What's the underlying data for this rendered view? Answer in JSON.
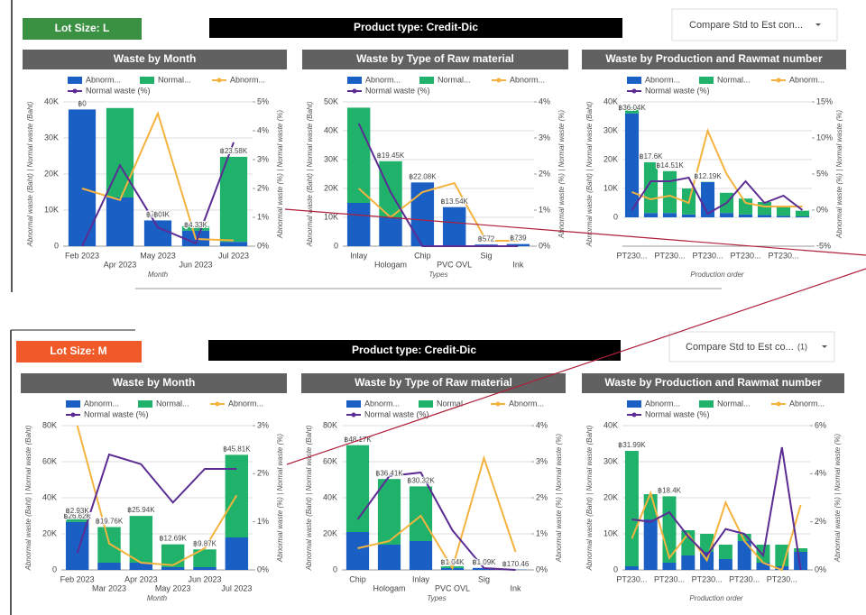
{
  "dashboards": [
    {
      "lot_size": "Lot Size: L",
      "product_type": "Product type: Credit-Dic",
      "compare": "Compare Std to Est con..."
    },
    {
      "lot_size": "Lot Size: M",
      "product_type": "Product type: Credit-Dic",
      "compare": "Compare Std to Est co...",
      "compare_count": "(1)"
    }
  ],
  "chart_data": [
    {
      "type": "combo",
      "title": "Waste by Month",
      "x_label": "Month",
      "y_label": "Abnormal waste (Baht) | Normal waste (Baht)",
      "y2_label": "Abnormal waste (%) | Normal waste (%)",
      "categories": [
        "Feb 2023",
        "Apr 2023",
        "May 2023",
        "Jun 2023",
        "Jul 2023"
      ],
      "ylim": [
        0,
        40000
      ],
      "yticks": [
        0,
        {
          "value": 10000,
          "label": "10K"
        },
        {
          "value": 20000,
          "label": "20K"
        },
        {
          "value": 30000,
          "label": "30K"
        },
        {
          "value": 40000,
          "label": "40K"
        }
      ],
      "y2lim": [
        0,
        5
      ],
      "y2ticks": [
        {
          "value": 0,
          "label": "0%"
        },
        {
          "value": 1,
          "label": "1%"
        },
        {
          "value": 2,
          "label": "2%"
        },
        {
          "value": 3,
          "label": "3%"
        },
        {
          "value": 4,
          "label": "4%"
        },
        {
          "value": 5,
          "label": "5%"
        }
      ],
      "grid": true,
      "series": [
        {
          "name": "Abnorm...",
          "color": "#1a5fc4",
          "values": [
            37900,
            13500,
            7140,
            4330,
            1200
          ],
          "value_labels": [
            null,
            null,
            "฿7.14K",
            "฿4.33K",
            null
          ]
        },
        {
          "name": "Normal...",
          "color": "#20b26b",
          "values": [
            0,
            24800,
            0,
            1200,
            23580
          ],
          "value_labels": [
            "฿0",
            null,
            "฿0",
            null,
            "฿23.58K"
          ]
        },
        {
          "name": "Abnorm...",
          "color": "#f4b33f",
          "axis": "y2",
          "values": [
            2.0,
            1.6,
            4.6,
            0.25,
            0.2
          ]
        },
        {
          "name": "Normal waste (%)",
          "color": "#5b2c93",
          "axis": "y2",
          "values": [
            0,
            2.8,
            0.65,
            0.1,
            3.6
          ]
        }
      ]
    },
    {
      "type": "combo",
      "title": "Waste by Type of Raw material",
      "x_label": "Types",
      "y_label": "Abnormal waste (Baht) | Normal waste (Baht)",
      "y2_label": "Abnormal waste (%) | Normal waste (%)",
      "categories": [
        "Inlay",
        "Hologam",
        "Chip",
        "PVC OVL",
        "Sig",
        "Ink"
      ],
      "ylim": [
        0,
        50000
      ],
      "yticks": [
        0,
        {
          "value": 10000,
          "label": "10K"
        },
        {
          "value": 20000,
          "label": "20K"
        },
        {
          "value": 30000,
          "label": "30K"
        },
        {
          "value": 40000,
          "label": "40K"
        },
        {
          "value": 50000,
          "label": "50K"
        }
      ],
      "y2lim": [
        0,
        4
      ],
      "y2ticks": [
        {
          "value": 0,
          "label": "0%"
        },
        {
          "value": 1,
          "label": "1%"
        },
        {
          "value": 2,
          "label": "2%"
        },
        {
          "value": 3,
          "label": "3%"
        },
        {
          "value": 4,
          "label": "4%"
        }
      ],
      "grid": true,
      "series": [
        {
          "name": "Abnorm...",
          "color": "#1a5fc4",
          "values": [
            15000,
            10000,
            22080,
            13540,
            572,
            739
          ],
          "value_labels": [
            null,
            null,
            "฿22.08K",
            "฿13.54K",
            "฿572",
            "฿739"
          ]
        },
        {
          "name": "Normal...",
          "color": "#20b26b",
          "values": [
            33000,
            19450,
            0,
            0,
            0,
            0
          ],
          "value_labels": [
            null,
            "฿19.45K",
            null,
            null,
            null,
            null
          ]
        },
        {
          "name": "Abnorm...",
          "color": "#f4b33f",
          "axis": "y2",
          "values": [
            1.6,
            0.8,
            1.5,
            1.75,
            0.15,
            0.15
          ]
        },
        {
          "name": "Normal waste (%)",
          "color": "#5b2c93",
          "axis": "y2",
          "values": [
            3.4,
            1.5,
            0,
            0,
            0,
            0
          ]
        }
      ]
    },
    {
      "type": "combo",
      "title": "Waste by Production and Rawmat number",
      "x_label": "Production order",
      "y_label": "Abnormal waste (Baht) | Normal waste (Baht)",
      "y2_label": "Abnormal waste (%) | Normal waste (%)",
      "categories": [
        "PT230...",
        null,
        "PT230...",
        null,
        "PT230...",
        null,
        "PT230...",
        null,
        "PT230...",
        null
      ],
      "ylim": [
        -10000,
        40000
      ],
      "yticks": [
        0,
        {
          "value": 10000,
          "label": "10K"
        },
        {
          "value": 20000,
          "label": "20K"
        },
        {
          "value": 30000,
          "label": "30K"
        },
        {
          "value": 40000,
          "label": "40K"
        }
      ],
      "y2lim": [
        -5,
        15
      ],
      "y2ticks": [
        {
          "value": -5,
          "label": "-5%"
        },
        {
          "value": 0,
          "label": "0%"
        },
        {
          "value": 5,
          "label": "5%"
        },
        {
          "value": 10,
          "label": "10%"
        },
        {
          "value": 15,
          "label": "15%"
        }
      ],
      "grid": true,
      "series": [
        {
          "name": "Abnorm...",
          "color": "#1a5fc4",
          "values": [
            36040,
            1500,
            1500,
            1000,
            12190,
            1500,
            1000,
            800,
            500,
            300
          ],
          "value_labels": [
            "฿36.04K",
            null,
            null,
            null,
            "฿12.19K",
            null,
            null,
            null,
            null,
            null
          ]
        },
        {
          "name": "Normal...",
          "color": "#20b26b",
          "values": [
            2000,
            17600,
            14510,
            9000,
            100,
            7000,
            5500,
            4500,
            3500,
            2000
          ],
          "value_labels": [
            null,
            "฿17.6K",
            "฿14.51K",
            null,
            null,
            null,
            null,
            null,
            null,
            null
          ]
        },
        {
          "name": "Abnorm...",
          "color": "#f4b33f",
          "axis": "y2",
          "values": [
            2.5,
            1.5,
            2,
            1,
            11,
            5,
            1,
            0.5,
            0.5,
            0.5
          ]
        },
        {
          "name": "Normal waste (%)",
          "color": "#5b2c93",
          "axis": "y2",
          "values": [
            0,
            4,
            4,
            4.5,
            -0.5,
            1,
            4,
            1,
            2,
            0
          ]
        }
      ]
    },
    {
      "type": "combo",
      "title": "Waste by Month",
      "x_label": "Month",
      "y_label": "Abnormal waste (Baht) | Normal waste (Baht)",
      "y2_label": "Abnormal waste (%) | Normal waste (%)",
      "categories": [
        "Feb 2023",
        "Mar 2023",
        "Apr 2023",
        "May 2023",
        "Jun 2023",
        "Jul 2023"
      ],
      "ylim": [
        0,
        80000
      ],
      "yticks": [
        0,
        {
          "value": 20000,
          "label": "20K"
        },
        {
          "value": 40000,
          "label": "40K"
        },
        {
          "value": 60000,
          "label": "60K"
        },
        {
          "value": 80000,
          "label": "80K"
        }
      ],
      "y2lim": [
        0,
        3
      ],
      "y2ticks": [
        {
          "value": 0,
          "label": "0%"
        },
        {
          "value": 1,
          "label": "1%"
        },
        {
          "value": 2,
          "label": "2%"
        },
        {
          "value": 3,
          "label": "3%"
        }
      ],
      "grid": true,
      "series": [
        {
          "name": "Abnorm...",
          "color": "#1a5fc4",
          "values": [
            26620,
            4000,
            4000,
            1500,
            1500,
            18000
          ],
          "value_labels": [
            "฿26.62K",
            null,
            null,
            null,
            null,
            null
          ]
        },
        {
          "name": "Normal...",
          "color": "#20b26b",
          "values": [
            2930,
            19760,
            25940,
            12690,
            9870,
            45810
          ],
          "value_labels": [
            "฿2.93K",
            "฿19.76K",
            "฿25.94K",
            "฿12.69K",
            "฿9.87K",
            "฿45.81K"
          ]
        },
        {
          "name": "Abnorm...",
          "color": "#f4b33f",
          "axis": "y2",
          "values": [
            3.0,
            0.55,
            0.15,
            0.1,
            0.45,
            1.55
          ]
        },
        {
          "name": "Normal waste (%)",
          "color": "#5b2c93",
          "axis": "y2",
          "values": [
            0.35,
            2.4,
            2.2,
            1.4,
            2.1,
            2.1
          ]
        }
      ]
    },
    {
      "type": "combo",
      "title": "Waste by Type of Raw material",
      "x_label": "Types",
      "y_label": "Abnormal waste (Baht) | Normal waste (Baht)",
      "y2_label": "Abnormal waste (%) | Normal waste (%)",
      "categories": [
        "Chip",
        "Hologam",
        "Inlay",
        "PVC OVL",
        "Sig",
        "Ink"
      ],
      "ylim": [
        0,
        80000
      ],
      "yticks": [
        0,
        {
          "value": 20000,
          "label": "20K"
        },
        {
          "value": 40000,
          "label": "40K"
        },
        {
          "value": 60000,
          "label": "60K"
        },
        {
          "value": 80000,
          "label": "80K"
        }
      ],
      "y2lim": [
        0,
        4
      ],
      "y2ticks": [
        {
          "value": 0,
          "label": "0%"
        },
        {
          "value": 1,
          "label": "1%"
        },
        {
          "value": 2,
          "label": "2%"
        },
        {
          "value": 3,
          "label": "3%"
        },
        {
          "value": 4,
          "label": "4%"
        }
      ],
      "grid": true,
      "series": [
        {
          "name": "Abnorm...",
          "color": "#1a5fc4",
          "values": [
            21000,
            14000,
            16000,
            1040,
            1090,
            170.46
          ],
          "value_labels": [
            null,
            null,
            null,
            "฿1.04K",
            "฿1.09K",
            "฿170.46"
          ]
        },
        {
          "name": "Normal",
          "color": "#20b26b",
          "values": [
            48170,
            36410,
            30320,
            1000,
            0,
            0
          ],
          "value_labels": [
            "฿48.17K",
            "฿36.41K",
            "฿30.32K",
            null,
            null,
            null
          ]
        },
        {
          "name": "Abnorm...",
          "color": "#f4b33f",
          "axis": "y2",
          "values": [
            0.6,
            0.8,
            1.5,
            0.05,
            3.1,
            0.5
          ]
        },
        {
          "name": "Normal waste (%)",
          "color": "#5b2c93",
          "axis": "y2",
          "values": [
            1.4,
            2.6,
            2.7,
            1.1,
            0.05,
            0
          ]
        }
      ]
    },
    {
      "type": "combo",
      "title": "Waste by Production and Rawmat number",
      "x_label": "Production order",
      "y_label": "Abnormal waste (Baht) | Normal waste (Baht)",
      "y2_label": "Abnormal waste (%) | Normal waste (%)",
      "categories": [
        "PT230...",
        null,
        "PT230...",
        null,
        "PT230...",
        null,
        "PT230...",
        null,
        "PT230...",
        null
      ],
      "ylim": [
        0,
        40000
      ],
      "yticks": [
        0,
        {
          "value": 10000,
          "label": "10K"
        },
        {
          "value": 20000,
          "label": "20K"
        },
        {
          "value": 30000,
          "label": "30K"
        },
        {
          "value": 40000,
          "label": "40K"
        }
      ],
      "y2lim": [
        0,
        6
      ],
      "y2ticks": [
        {
          "value": 0,
          "label": "0%"
        },
        {
          "value": 2,
          "label": "2%"
        },
        {
          "value": 4,
          "label": "4%"
        },
        {
          "value": 6,
          "label": "6%"
        }
      ],
      "grid": true,
      "series": [
        {
          "name": "Abnorm...",
          "color": "#1a5fc4",
          "values": [
            1000,
            14000,
            2000,
            4000,
            5000,
            3000,
            8000,
            2000,
            1000,
            5000
          ]
        },
        {
          "name": "Normal...",
          "color": "#20b26b",
          "values": [
            31990,
            7000,
            18400,
            7000,
            5000,
            4000,
            2000,
            5000,
            6000,
            1000
          ],
          "value_labels": [
            "฿31.99K",
            null,
            "฿18.4K",
            null,
            null,
            null,
            null,
            null,
            null,
            null
          ]
        },
        {
          "name": "Abnorm...",
          "color": "#f4b33f",
          "axis": "y2",
          "values": [
            1.3,
            3.2,
            0.5,
            1.5,
            0.4,
            2.8,
            1.2,
            0.3,
            0,
            2.7
          ]
        },
        {
          "name": "Normal waste (%)",
          "color": "#5b2c93",
          "axis": "y2",
          "values": [
            2.1,
            2.0,
            2.4,
            1.4,
            0.6,
            1.7,
            1.5,
            0.6,
            5.1,
            0
          ]
        }
      ]
    }
  ]
}
